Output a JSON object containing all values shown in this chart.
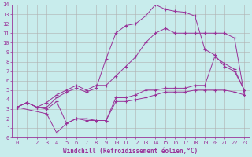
{
  "background_color": "#c8ecec",
  "grid_color": "#b0b0b0",
  "line_color": "#993399",
  "marker": "+",
  "xlabel": "Windchill (Refroidissement éolien,°C)",
  "xlim": [
    -0.5,
    23.5
  ],
  "ylim": [
    0,
    14
  ],
  "xticks": [
    0,
    1,
    2,
    3,
    4,
    5,
    6,
    7,
    8,
    9,
    10,
    11,
    12,
    13,
    14,
    15,
    16,
    17,
    18,
    19,
    20,
    21,
    22,
    23
  ],
  "yticks": [
    0,
    1,
    2,
    3,
    4,
    5,
    6,
    7,
    8,
    9,
    10,
    11,
    12,
    13,
    14
  ],
  "line1_x": [
    0,
    1,
    2,
    3,
    4,
    5,
    6,
    7,
    8,
    9,
    10,
    11,
    12,
    13,
    14,
    15,
    16,
    17,
    18,
    19,
    20,
    21,
    22,
    23
  ],
  "line1_y": [
    3.2,
    3.7,
    3.2,
    3.7,
    4.5,
    5.0,
    5.5,
    5.0,
    5.5,
    5.5,
    6.5,
    7.5,
    8.5,
    10.0,
    11.0,
    11.5,
    11.0,
    11.0,
    11.0,
    11.0,
    11.0,
    11.0,
    10.5,
    4.5
  ],
  "line2_x": [
    0,
    1,
    2,
    3,
    4,
    5,
    6,
    7,
    8,
    9,
    10,
    11,
    12,
    13,
    14,
    15,
    16,
    17,
    18,
    19,
    20,
    21,
    22,
    23
  ],
  "line2_y": [
    3.2,
    3.7,
    3.2,
    3.2,
    4.2,
    4.8,
    5.2,
    4.8,
    5.2,
    8.3,
    11.0,
    11.8,
    12.0,
    12.8,
    14.0,
    13.5,
    13.3,
    13.2,
    12.8,
    9.3,
    8.7,
    7.5,
    7.0,
    5.0
  ],
  "line3_x": [
    0,
    1,
    2,
    3,
    4,
    5,
    6,
    7,
    8,
    9,
    10,
    11,
    12,
    13,
    14,
    15,
    16,
    17,
    18,
    19,
    20,
    21,
    22,
    23
  ],
  "line3_y": [
    3.2,
    3.7,
    3.2,
    3.0,
    3.8,
    1.5,
    2.0,
    1.8,
    1.8,
    1.8,
    4.2,
    4.2,
    4.5,
    5.0,
    5.0,
    5.2,
    5.2,
    5.2,
    5.5,
    5.5,
    8.5,
    7.8,
    7.2,
    5.0
  ],
  "line4_x": [
    0,
    3,
    4,
    5,
    6,
    7,
    8,
    9,
    10,
    11,
    12,
    13,
    14,
    15,
    16,
    17,
    18,
    19,
    20,
    21,
    22,
    23
  ],
  "line4_y": [
    3.2,
    2.5,
    0.5,
    1.5,
    2.0,
    2.0,
    1.8,
    1.8,
    3.8,
    3.8,
    4.0,
    4.2,
    4.5,
    4.8,
    4.8,
    4.8,
    5.0,
    5.0,
    5.0,
    5.0,
    4.8,
    4.5
  ],
  "label_fontsize": 5.5,
  "tick_fontsize": 5.0,
  "tick_color": "#993399",
  "label_color": "#993399"
}
